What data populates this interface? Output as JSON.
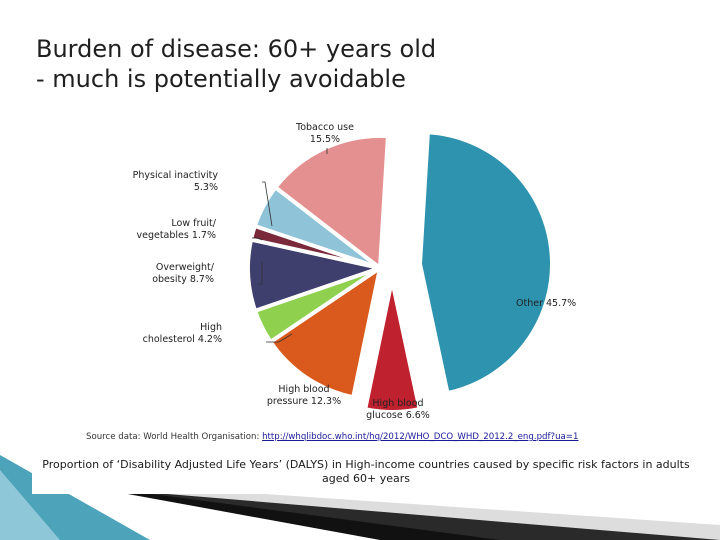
{
  "slide": {
    "title_line1": "Burden of disease: 60+ years old",
    "title_line2": "- much is potentially avoidable",
    "source_prefix": "Source data: World Health Organisation: ",
    "source_link": "http://whqlibdoc.who.int/hq/2012/WHO_DCO_WHD_2012.2_eng.pdf?ua=1",
    "caption": "Proportion of ‘Disability Adjusted Life Years’ (DALYS) in High-income countries caused by specific risk factors in adults aged 60+ years"
  },
  "chart_data": {
    "type": "pie",
    "title": "",
    "slices": [
      {
        "key": "other",
        "label_lines": [
          "Other 45.7%"
        ],
        "value": 45.7,
        "color": "#2e93ae",
        "exploded": true
      },
      {
        "key": "glucose",
        "label_lines": [
          "High blood",
          "glucose 6.6%"
        ],
        "value": 6.6,
        "color": "#c0212e",
        "exploded": true
      },
      {
        "key": "pressure",
        "label_lines": [
          "High blood",
          "pressure 12.3%"
        ],
        "value": 12.3,
        "color": "#d95a1c",
        "exploded": false
      },
      {
        "key": "cholesterol",
        "label_lines": [
          "High",
          "cholesterol 4.2%"
        ],
        "value": 4.2,
        "color": "#8fd14f",
        "exploded": false
      },
      {
        "key": "overweight",
        "label_lines": [
          "Overweight/",
          "obesity 8.7%"
        ],
        "value": 8.7,
        "color": "#3f3f6e",
        "exploded": false
      },
      {
        "key": "fruitveg",
        "label_lines": [
          "Low fruit/",
          "vegetables 1.7%"
        ],
        "value": 1.7,
        "color": "#7a2a3a",
        "exploded": false
      },
      {
        "key": "inactivity",
        "label_lines": [
          "Physical inactivity",
          "5.3%"
        ],
        "value": 5.3,
        "color": "#8fc3d8",
        "exploded": false
      },
      {
        "key": "tobacco",
        "label_lines": [
          "Tobacco use",
          "15.5%"
        ],
        "value": 15.5,
        "color": "#e59090",
        "exploded": false
      }
    ]
  },
  "colors": {
    "deco_teal": "#2e93ae",
    "deco_dark": "#111111"
  }
}
